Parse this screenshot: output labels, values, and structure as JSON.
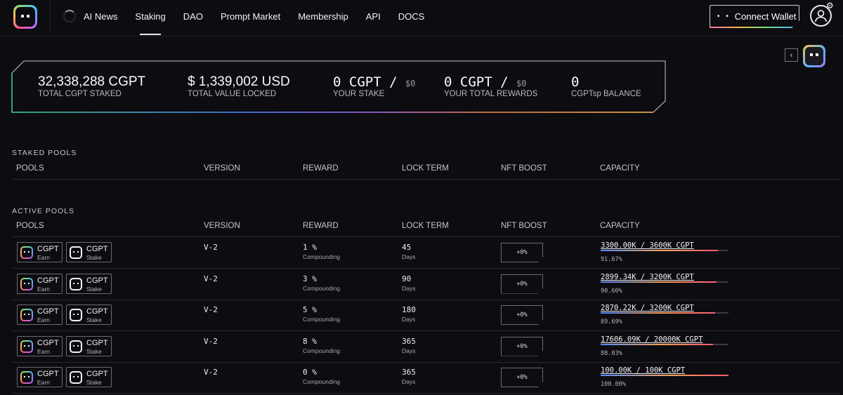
{
  "header": {
    "nav": [
      "AI News",
      "Staking",
      "DAO",
      "Prompt Market",
      "Membership",
      "API",
      "DOCS"
    ],
    "active_nav": "Staking",
    "connect_label": "Connect Wallet",
    "connect_dots": "• •"
  },
  "stats": [
    {
      "value": "32,338,288 CGPT",
      "label": "TOTAL CGPT STAKED"
    },
    {
      "value": "$ 1,339,002 USD",
      "label": "TOTAL VALUE LOCKED"
    },
    {
      "value": "0 CGPT / ",
      "small": "$0",
      "label": "YOUR STAKE"
    },
    {
      "value": "0 CGPT / ",
      "small": "$0",
      "label": "YOUR TOTAL REWARDS"
    },
    {
      "value": "0",
      "label": "CGPTsp BALANCE"
    }
  ],
  "staked": {
    "title": "STAKED POOLS",
    "columns": [
      "POOLS",
      "VERSION",
      "REWARD",
      "LOCK TERM",
      "NFT BOOST",
      "CAPACITY"
    ]
  },
  "active": {
    "title": "ACTIVE POOLS",
    "columns": [
      "POOLS",
      "VERSION",
      "REWARD",
      "LOCK TERM",
      "NFT BOOST",
      "CAPACITY"
    ],
    "token_a": {
      "name": "CGPT",
      "sub": "Earn"
    },
    "token_b": {
      "name": "CGPT",
      "sub": "Stake"
    },
    "rows": [
      {
        "version": "V-2",
        "reward": "1 %",
        "reward_sub": "Compounding",
        "lock": "45",
        "lock_sub": "Days",
        "boost": "+0%",
        "capacity": "3300.00K / 3600K CGPT",
        "pct": "91.67%",
        "fill": 0.9167
      },
      {
        "version": "V-2",
        "reward": "3 %",
        "reward_sub": "Compounding",
        "lock": "90",
        "lock_sub": "Days",
        "boost": "+0%",
        "capacity": "2899.34K / 3200K CGPT",
        "pct": "90.60%",
        "fill": 0.906
      },
      {
        "version": "V-2",
        "reward": "5 %",
        "reward_sub": "Compounding",
        "lock": "180",
        "lock_sub": "Days",
        "boost": "+0%",
        "capacity": "2870.22K / 3200K CGPT",
        "pct": "89.69%",
        "fill": 0.8969
      },
      {
        "version": "V-2",
        "reward": "8 %",
        "reward_sub": "Compounding",
        "lock": "365",
        "lock_sub": "Days",
        "boost": "+0%",
        "capacity": "17606.09K / 20000K CGPT",
        "pct": "88.03%",
        "fill": 0.8803
      },
      {
        "version": "V-2",
        "reward": "0 %",
        "reward_sub": "Compounding",
        "lock": "365",
        "lock_sub": "Days",
        "boost": "+0%",
        "capacity": "100.00K / 100K CGPT",
        "pct": "100.00%",
        "fill": 1.0
      }
    ]
  }
}
